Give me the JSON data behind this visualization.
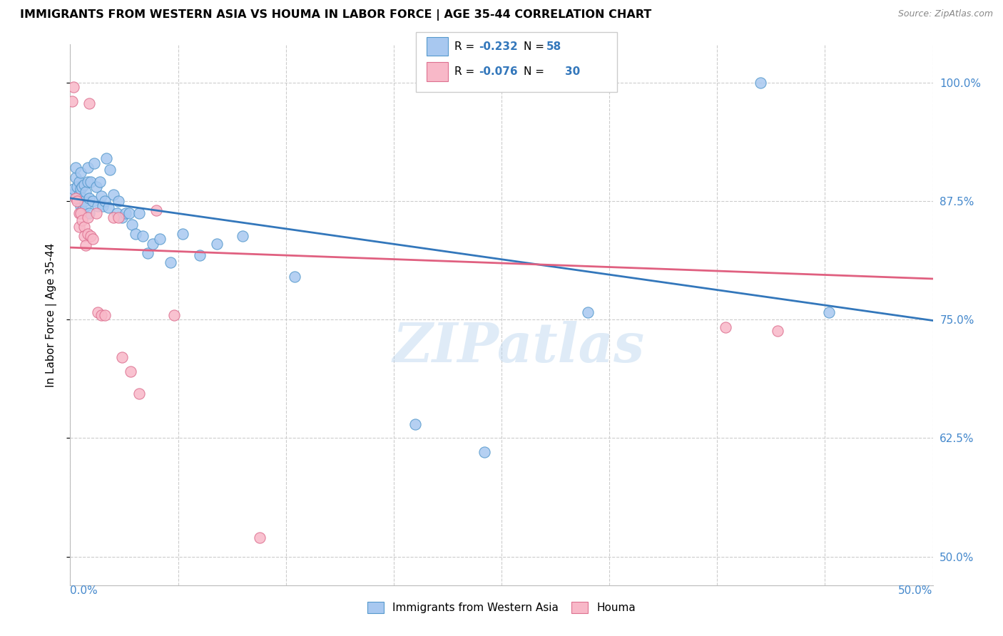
{
  "title": "IMMIGRANTS FROM WESTERN ASIA VS HOUMA IN LABOR FORCE | AGE 35-44 CORRELATION CHART",
  "source": "Source: ZipAtlas.com",
  "ylabel": "In Labor Force | Age 35-44",
  "ylabel_ticks": [
    "50.0%",
    "62.5%",
    "75.0%",
    "87.5%",
    "100.0%"
  ],
  "ylabel_vals": [
    0.5,
    0.625,
    0.75,
    0.875,
    1.0
  ],
  "xlim": [
    0.0,
    0.5
  ],
  "ylim": [
    0.47,
    1.04
  ],
  "blue_label": "Immigrants from Western Asia",
  "blue_R": "-0.232",
  "blue_N": "58",
  "pink_label": "Houma",
  "pink_R": "-0.076",
  "pink_N": "30",
  "blue_color": "#a8c8f0",
  "blue_edge": "#5599cc",
  "pink_color": "#f8b8c8",
  "pink_edge": "#dd7090",
  "blue_line_color": "#3377bb",
  "pink_line_color": "#e06080",
  "watermark": "ZIPatlas",
  "blue_trend_x0": 0.0,
  "blue_trend_y0": 0.878,
  "blue_trend_x1": 0.5,
  "blue_trend_y1": 0.749,
  "pink_trend_x0": 0.0,
  "pink_trend_y0": 0.826,
  "pink_trend_x1": 0.5,
  "pink_trend_y1": 0.793,
  "blue_points_x": [
    0.001,
    0.002,
    0.003,
    0.003,
    0.004,
    0.004,
    0.005,
    0.005,
    0.006,
    0.006,
    0.006,
    0.007,
    0.007,
    0.007,
    0.008,
    0.008,
    0.009,
    0.009,
    0.01,
    0.01,
    0.011,
    0.011,
    0.012,
    0.013,
    0.014,
    0.015,
    0.016,
    0.017,
    0.018,
    0.019,
    0.02,
    0.021,
    0.022,
    0.023,
    0.025,
    0.027,
    0.028,
    0.03,
    0.032,
    0.034,
    0.036,
    0.038,
    0.04,
    0.042,
    0.045,
    0.048,
    0.052,
    0.058,
    0.065,
    0.075,
    0.085,
    0.1,
    0.13,
    0.2,
    0.24,
    0.3,
    0.4,
    0.44
  ],
  "blue_points_y": [
    0.882,
    0.888,
    0.9,
    0.91,
    0.89,
    0.878,
    0.895,
    0.882,
    0.905,
    0.888,
    0.87,
    0.89,
    0.878,
    0.865,
    0.892,
    0.875,
    0.885,
    0.87,
    0.91,
    0.895,
    0.878,
    0.862,
    0.895,
    0.875,
    0.915,
    0.89,
    0.87,
    0.895,
    0.88,
    0.87,
    0.875,
    0.92,
    0.868,
    0.908,
    0.882,
    0.862,
    0.875,
    0.858,
    0.862,
    0.862,
    0.85,
    0.84,
    0.862,
    0.838,
    0.82,
    0.83,
    0.835,
    0.81,
    0.84,
    0.818,
    0.83,
    0.838,
    0.795,
    0.64,
    0.61,
    0.758,
    1.0,
    0.758
  ],
  "pink_points_x": [
    0.001,
    0.002,
    0.003,
    0.004,
    0.005,
    0.005,
    0.006,
    0.007,
    0.008,
    0.008,
    0.009,
    0.01,
    0.01,
    0.011,
    0.012,
    0.013,
    0.015,
    0.016,
    0.018,
    0.02,
    0.025,
    0.028,
    0.03,
    0.035,
    0.04,
    0.05,
    0.06,
    0.11,
    0.38,
    0.41
  ],
  "pink_points_y": [
    0.98,
    0.995,
    0.878,
    0.875,
    0.862,
    0.848,
    0.862,
    0.855,
    0.848,
    0.838,
    0.828,
    0.858,
    0.84,
    0.978,
    0.838,
    0.835,
    0.862,
    0.758,
    0.755,
    0.755,
    0.858,
    0.858,
    0.71,
    0.695,
    0.672,
    0.865,
    0.755,
    0.52,
    0.742,
    0.738
  ]
}
